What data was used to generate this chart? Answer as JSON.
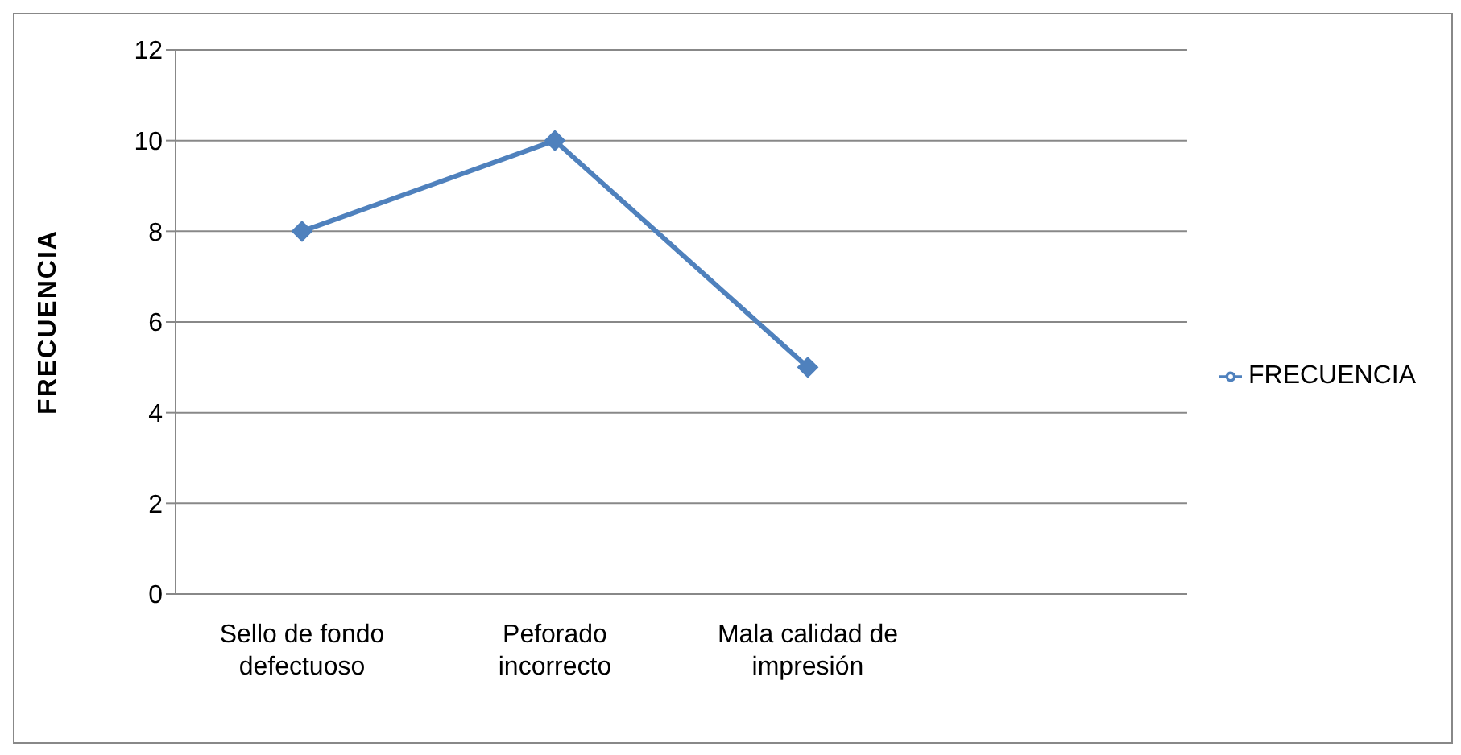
{
  "chart_data": {
    "type": "line",
    "ylabel": "FRECUENCIA",
    "categories": [
      "Sello de fondo defectuoso",
      "Peforado incorrecto",
      "Mala calidad de impresión",
      null
    ],
    "series": [
      {
        "name": "FRECUENCIA",
        "color": "#4f81bd",
        "values": [
          8,
          10,
          5,
          null
        ]
      }
    ],
    "ylim": [
      0,
      12
    ],
    "yticks": [
      0,
      2,
      4,
      6,
      8,
      10,
      12
    ],
    "grid": "y",
    "legend": "right",
    "marker": "diamond",
    "line_style": "solid"
  }
}
